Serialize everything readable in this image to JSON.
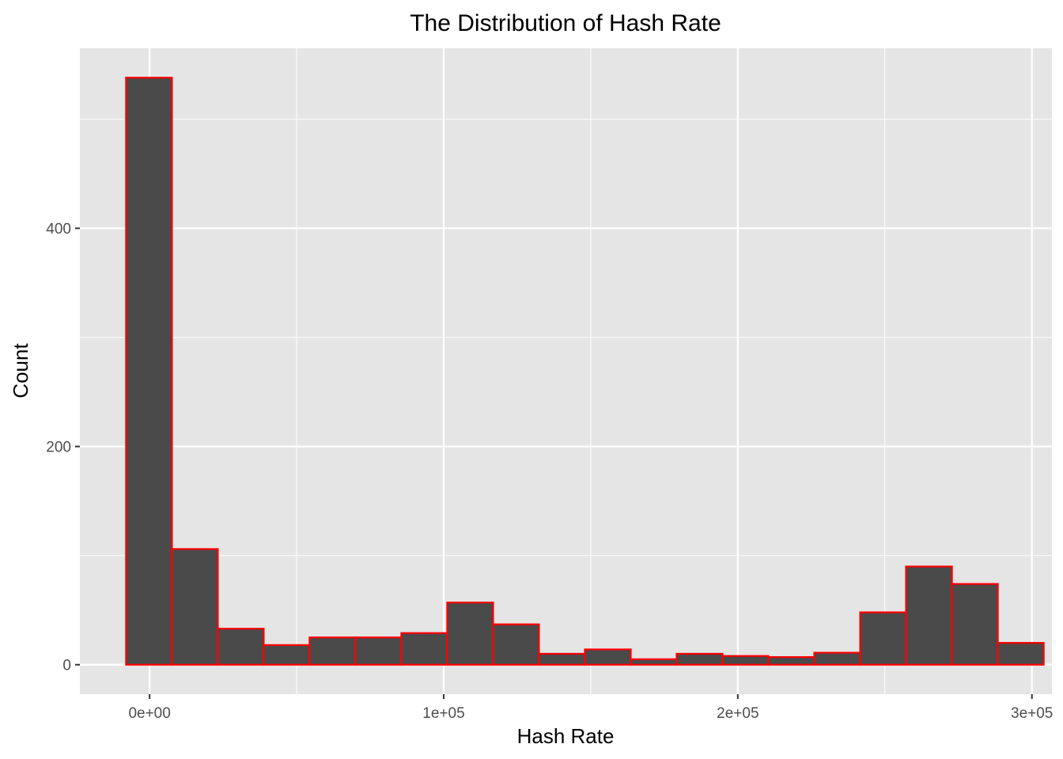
{
  "chart_data": {
    "type": "bar",
    "title": "The Distribution of Hash Rate",
    "xlabel": "Hash Rate",
    "ylabel": "Count",
    "x_ticks": [
      {
        "value": 0,
        "label": "0e+00"
      },
      {
        "value": 100000,
        "label": "1e+05"
      },
      {
        "value": 200000,
        "label": "2e+05"
      },
      {
        "value": 300000,
        "label": "3e+05"
      }
    ],
    "y_ticks": [
      {
        "value": 0,
        "label": "0"
      },
      {
        "value": 200,
        "label": "200"
      },
      {
        "value": 400,
        "label": "400"
      }
    ],
    "xlim": [
      -23700,
      306800
    ],
    "ylim": [
      -27,
      565
    ],
    "bin_width": 15600,
    "bin_start": -8000,
    "bins": [
      {
        "x0": -8000,
        "x1": 7600,
        "count": 538
      },
      {
        "x0": 7600,
        "x1": 23200,
        "count": 106
      },
      {
        "x0": 23200,
        "x1": 38800,
        "count": 33
      },
      {
        "x0": 38800,
        "x1": 54400,
        "count": 18
      },
      {
        "x0": 54400,
        "x1": 70000,
        "count": 25
      },
      {
        "x0": 70000,
        "x1": 85600,
        "count": 25
      },
      {
        "x0": 85600,
        "x1": 101200,
        "count": 29
      },
      {
        "x0": 101200,
        "x1": 116800,
        "count": 57
      },
      {
        "x0": 116800,
        "x1": 132400,
        "count": 37
      },
      {
        "x0": 132400,
        "x1": 148000,
        "count": 10
      },
      {
        "x0": 148000,
        "x1": 163600,
        "count": 14
      },
      {
        "x0": 163600,
        "x1": 179200,
        "count": 5
      },
      {
        "x0": 179200,
        "x1": 194800,
        "count": 10
      },
      {
        "x0": 194800,
        "x1": 210400,
        "count": 8
      },
      {
        "x0": 210400,
        "x1": 226000,
        "count": 7
      },
      {
        "x0": 226000,
        "x1": 241600,
        "count": 11
      },
      {
        "x0": 241600,
        "x1": 257200,
        "count": 48
      },
      {
        "x0": 257200,
        "x1": 272800,
        "count": 90
      },
      {
        "x0": 272800,
        "x1": 288400,
        "count": 74
      },
      {
        "x0": 288400,
        "x1": 304000,
        "count": 20
      }
    ],
    "grid": true,
    "panel_background": "#e5e5e5",
    "grid_color": "#ffffff",
    "bar_fill": "#4a4a4a",
    "bar_outline": "#ff0000"
  }
}
